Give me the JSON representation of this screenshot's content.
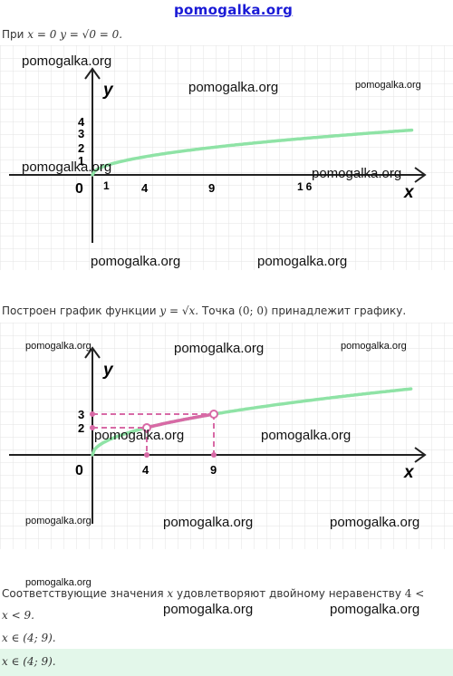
{
  "header": {
    "site": "pomogalka.org"
  },
  "line1": {
    "prefix": "При",
    "cond": "x = 0",
    "eq": "y = √0 = 0."
  },
  "graph1": {
    "y_label": "y",
    "x_label": "x",
    "origin": "0",
    "y_ticks": [
      "4",
      "3",
      "2",
      "1"
    ],
    "x_ticks": [
      "1",
      "4",
      "9",
      "16"
    ]
  },
  "line2": {
    "text": "Построен график функции",
    "func": "y = √x.",
    "point_text": "Точка",
    "point": "(0;  0)",
    "tail": "принадлежит графику."
  },
  "graph2": {
    "y_label": "y",
    "x_label": "x",
    "origin": "0",
    "y_ticks": [
      "3",
      "2"
    ],
    "x_ticks": [
      "4",
      "9"
    ]
  },
  "line3": {
    "text1": "Соответствующие значения",
    "var": "x",
    "text2": "удовлетворяют двойному неравенству",
    "ineq_a": "4  <",
    "ineq_b": "x  <  9."
  },
  "line4": {
    "text": "x ∈ (4;  9)."
  },
  "answer": {
    "text": "x ∈ (4;  9)."
  },
  "watermarks": {
    "w1": "pomogalka.org",
    "w2": "pomogalka.org",
    "w3": "pomogalka.org",
    "w4": "pomogalka.org",
    "w5": "pomogalka.org",
    "w6": "pomogalka.org",
    "w7": "pomogalka.org",
    "w8": "pomogalka.org",
    "w9": "pomogalka.org",
    "w10": "pomogalka.org",
    "w11": "pomogalka.org",
    "w12": "pomogalka.org",
    "w13": "pomogalka.org",
    "w14": "pomogalka.org",
    "w15": "pomogalka.org",
    "w16": "pomogalka.org",
    "w17": "pomogalka.org",
    "w18": "pomogalka.org"
  },
  "colors": {
    "curve": "#8fe3a6",
    "highlight": "#d86aa6",
    "grid": "#e3e3e3",
    "answer_bg": "#e3f7ea"
  }
}
